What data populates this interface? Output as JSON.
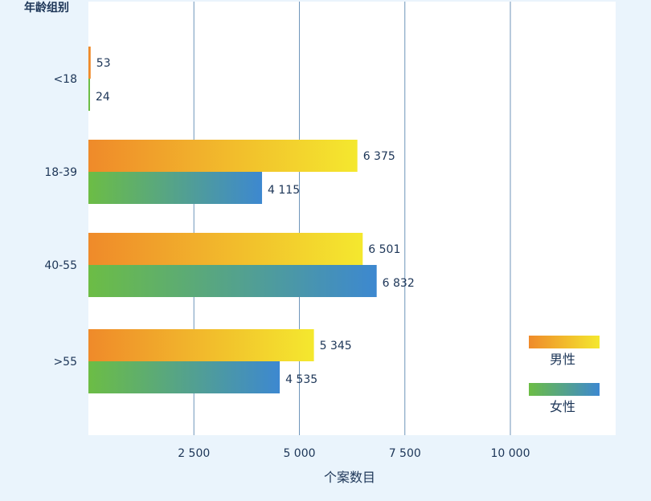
{
  "chart_data": {
    "type": "bar",
    "orientation": "horizontal",
    "ylabel": "年龄组别",
    "xlabel": "个案数目",
    "categories": [
      "<18",
      "18-39",
      "40-55",
      ">55"
    ],
    "series": [
      {
        "name": "男性",
        "values": [
          53,
          6375,
          6501,
          5345
        ],
        "labels": [
          "53",
          "6 375",
          "6 501",
          "5 345"
        ]
      },
      {
        "name": "女性",
        "values": [
          24,
          4115,
          6832,
          4535
        ],
        "labels": [
          "24",
          "4 115",
          "6 832",
          "4 535"
        ]
      }
    ],
    "xticks": [
      2500,
      5000,
      7500,
      10000
    ],
    "xtick_labels": [
      "2 500",
      "5 000",
      "7 500",
      "10  000"
    ],
    "xlim": [
      0,
      12500
    ],
    "grid": true,
    "legend_position": "bottom-right",
    "colors": {
      "male_start": "#ef8a2a",
      "male_end": "#f4e82e",
      "female_start": "#6cbd45",
      "female_end": "#3d88d0",
      "grid": "#6f95ba",
      "plot_bg": "#ffffff",
      "page_bg": "#eaf4fc"
    }
  }
}
